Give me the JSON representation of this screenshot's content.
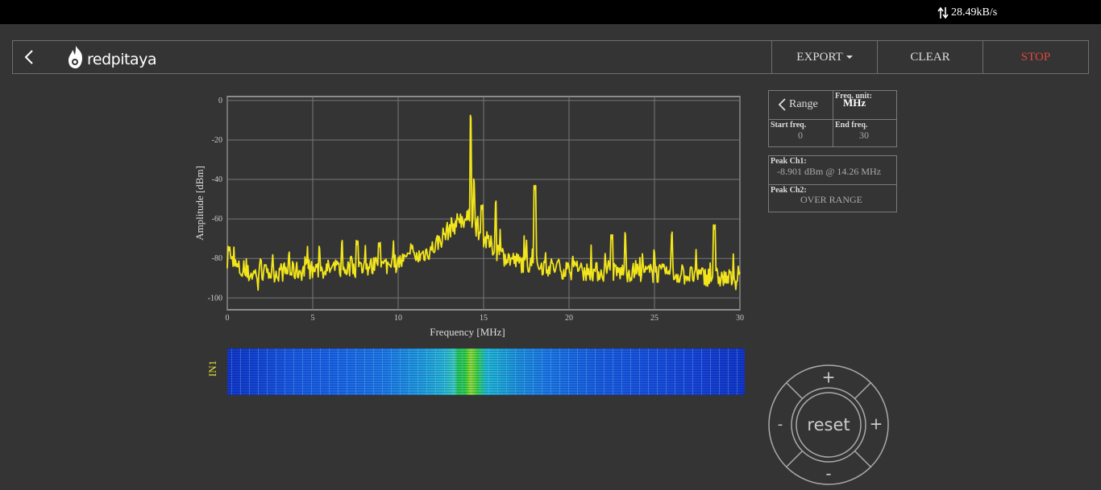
{
  "status": {
    "net_rate": "28.49kB/s"
  },
  "header": {
    "logo_text": "redpitaya",
    "export_label": "EXPORT",
    "clear_label": "CLEAR",
    "stop_label": "STOP"
  },
  "colors": {
    "accent_stop": "#e0473c",
    "trace": "#f2e51c",
    "channel_label": "#e8e03a"
  },
  "waterfall": {
    "channel_label": "IN1"
  },
  "settings": {
    "range_label": "Range",
    "freq_unit_label": "Freq. unit:",
    "freq_unit_value": "MHz",
    "start_freq_label": "Start freq.",
    "start_freq_value": "0",
    "end_freq_label": "End freq.",
    "end_freq_value": "30"
  },
  "peaks": {
    "ch1_label": "Peak Ch1:",
    "ch1_value": "-8.901 dBm @ 14.26 MHz",
    "ch2_label": "Peak Ch2:",
    "ch2_value": "OVER RANGE"
  },
  "dpad": {
    "plus_top": "+",
    "minus_left": "-",
    "plus_right": "+",
    "minus_bottom": "-",
    "reset_label": "reset"
  },
  "chart_data": {
    "type": "line",
    "xlabel": "Frequency [MHz]",
    "ylabel": "Amplitude [dBm]",
    "xlim": [
      0,
      30
    ],
    "ylim": [
      -100,
      0
    ],
    "x_ticks": [
      0,
      5,
      10,
      15,
      20,
      25,
      30
    ],
    "y_ticks": [
      0,
      -20,
      -40,
      -60,
      -80,
      -100
    ],
    "grid": true,
    "series": [
      {
        "noise_floor": [
          [
            0,
            -80
          ],
          [
            1,
            -88
          ],
          [
            3,
            -87
          ],
          [
            5,
            -86
          ],
          [
            7,
            -85
          ],
          [
            9,
            -84
          ],
          [
            11,
            -80
          ],
          [
            12,
            -75
          ],
          [
            13,
            -65
          ],
          [
            13.7,
            -60
          ],
          [
            14.3,
            -60
          ],
          [
            15,
            -70
          ],
          [
            16,
            -78
          ],
          [
            17,
            -82
          ],
          [
            18,
            -83
          ],
          [
            20,
            -86
          ],
          [
            22,
            -87
          ],
          [
            24,
            -87
          ],
          [
            26,
            -88
          ],
          [
            28,
            -89
          ],
          [
            30,
            -91
          ]
        ],
        "peaks": [
          [
            0.1,
            -76
          ],
          [
            1.8,
            -96
          ],
          [
            3.6,
            -78
          ],
          [
            5.4,
            -75
          ],
          [
            6.7,
            -72
          ],
          [
            7.6,
            -73
          ],
          [
            8.9,
            -74
          ],
          [
            10.8,
            -75
          ],
          [
            13.6,
            -62
          ],
          [
            14.26,
            -8.901
          ],
          [
            14.45,
            -41
          ],
          [
            14.9,
            -55
          ],
          [
            15.7,
            -52
          ],
          [
            18.0,
            -45
          ],
          [
            20.2,
            -80
          ],
          [
            22.5,
            -70
          ],
          [
            23.3,
            -68
          ],
          [
            25.0,
            -77
          ],
          [
            26.0,
            -68
          ],
          [
            28.5,
            -65
          ]
        ]
      }
    ]
  }
}
